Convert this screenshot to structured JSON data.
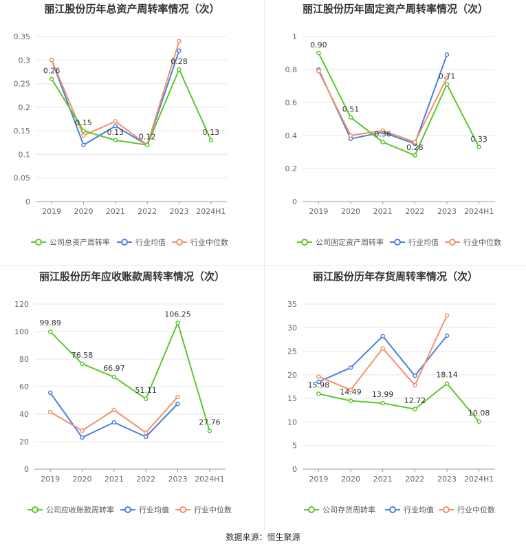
{
  "colors": {
    "company": "#5ac72a",
    "avg": "#4a7fde",
    "median": "#f4916a",
    "grid": "#e6e6e6",
    "axis": "#666666",
    "label": "#333333"
  },
  "source_text": "数据来源：恒生聚源",
  "chart_data": [
    {
      "type": "line",
      "title": "丽江股份历年总资产周转率情况（次）",
      "categories": [
        "2019",
        "2020",
        "2021",
        "2022",
        "2023",
        "2024H1"
      ],
      "ylim": [
        0,
        0.35
      ],
      "yticks": [
        "0",
        "0.05",
        "0.1",
        "0.15",
        "0.2",
        "0.25",
        "0.3",
        "0.35"
      ],
      "grid": true,
      "legend_position": "bottom",
      "series": [
        {
          "name": "公司总资产周转率",
          "role": "company",
          "values": [
            0.26,
            0.15,
            0.13,
            0.12,
            0.28,
            0.13
          ],
          "labels": [
            "0.26",
            "0.15",
            "0.13",
            "0.12",
            "0.28",
            "0.13"
          ]
        },
        {
          "name": "行业均值",
          "role": "avg",
          "values": [
            0.3,
            0.12,
            0.16,
            0.12,
            0.32,
            null
          ]
        },
        {
          "name": "行业中位数",
          "role": "median",
          "values": [
            0.3,
            0.14,
            0.17,
            0.12,
            0.34,
            null
          ]
        }
      ]
    },
    {
      "type": "line",
      "title": "丽江股份历年固定资产周转率情况（次）",
      "categories": [
        "2019",
        "2020",
        "2021",
        "2022",
        "2023",
        "2024H1"
      ],
      "ylim": [
        0,
        1
      ],
      "yticks": [
        "0",
        "0.2",
        "0.4",
        "0.6",
        "0.8",
        "1"
      ],
      "grid": true,
      "legend_position": "bottom",
      "series": [
        {
          "name": "公司固定资产周转率",
          "role": "company",
          "values": [
            0.9,
            0.51,
            0.36,
            0.28,
            0.71,
            0.33
          ],
          "labels": [
            "0.90",
            "0.51",
            "0.36",
            "0.28",
            "0.71",
            "0.33"
          ]
        },
        {
          "name": "行业均值",
          "role": "avg",
          "values": [
            0.8,
            0.38,
            0.42,
            0.35,
            0.89,
            null
          ]
        },
        {
          "name": "行业中位数",
          "role": "median",
          "values": [
            0.79,
            0.4,
            0.43,
            0.36,
            0.75,
            null
          ]
        }
      ]
    },
    {
      "type": "line",
      "title": "丽江股份历年应收账款周转率情况（次）",
      "categories": [
        "2019",
        "2020",
        "2021",
        "2022",
        "2023",
        "2024H1"
      ],
      "ylim": [
        0,
        120
      ],
      "yticks": [
        "0",
        "20",
        "40",
        "60",
        "80",
        "100",
        "120"
      ],
      "grid": true,
      "legend_position": "bottom",
      "series": [
        {
          "name": "公司应收账款周转率",
          "role": "company",
          "values": [
            99.89,
            76.58,
            66.97,
            51.11,
            106.25,
            27.76
          ],
          "labels": [
            "99.89",
            "76.58",
            "66.97",
            "51.11",
            "106.25",
            "27.76"
          ]
        },
        {
          "name": "行业均值",
          "role": "avg",
          "values": [
            55.5,
            23,
            34,
            23.5,
            47.5,
            null
          ]
        },
        {
          "name": "行业中位数",
          "role": "median",
          "values": [
            41.5,
            28,
            43,
            26.5,
            52.5,
            null
          ]
        }
      ]
    },
    {
      "type": "line",
      "title": "丽江股份历年存货周转率情况（次）",
      "categories": [
        "2019",
        "2020",
        "2021",
        "2022",
        "2023",
        "2024H1"
      ],
      "ylim": [
        0,
        35
      ],
      "yticks": [
        "0",
        "5",
        "10",
        "15",
        "20",
        "25",
        "30",
        "35"
      ],
      "grid": true,
      "legend_position": "bottom",
      "series": [
        {
          "name": "公司存货周转率",
          "role": "company",
          "values": [
            15.98,
            14.49,
            13.99,
            12.72,
            18.14,
            10.08
          ],
          "labels": [
            "15.98",
            "14.49",
            "13.99",
            "12.72",
            "18.14",
            "10.08"
          ]
        },
        {
          "name": "行业均值",
          "role": "avg",
          "values": [
            18.5,
            21.5,
            28.2,
            19.8,
            28.3,
            null
          ]
        },
        {
          "name": "行业中位数",
          "role": "median",
          "values": [
            19.6,
            16.8,
            25.6,
            17.8,
            32.6,
            null
          ]
        }
      ]
    }
  ]
}
